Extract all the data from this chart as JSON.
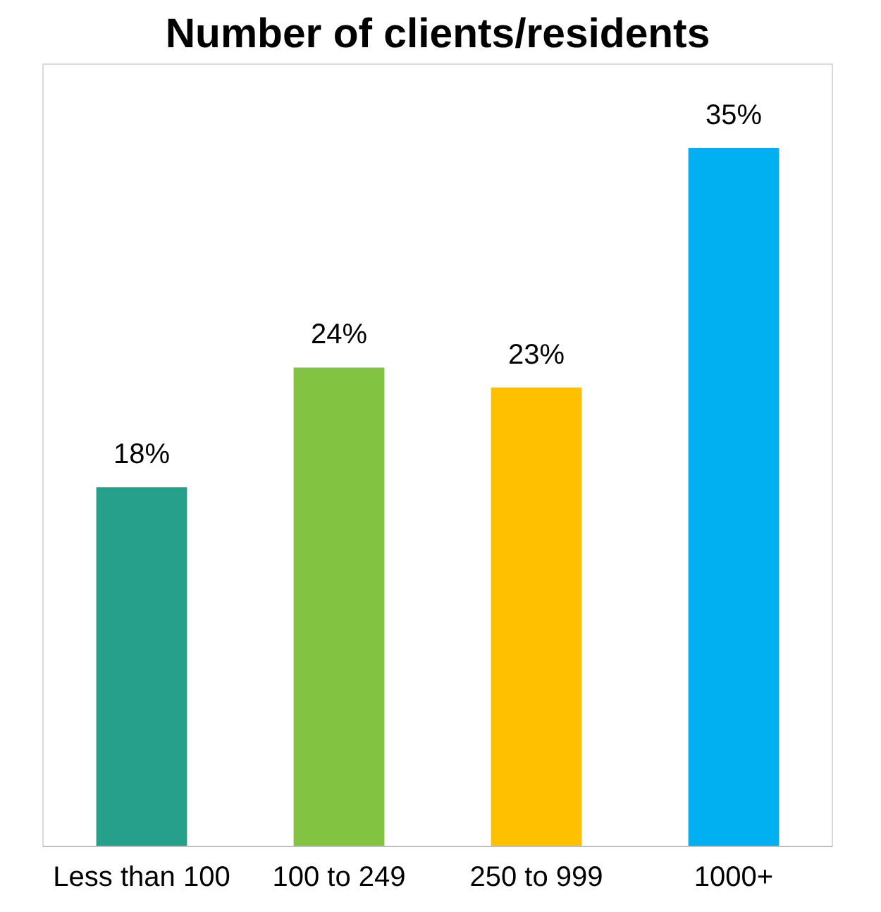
{
  "chart_data": {
    "type": "bar",
    "title": "Number of clients/residents",
    "categories": [
      "Less than 100",
      "100 to 249",
      "250 to 999",
      "1000+"
    ],
    "values": [
      18,
      24,
      23,
      35
    ],
    "colors": [
      "#26a08a",
      "#82c341",
      "#ffc000",
      "#00b0f0"
    ],
    "value_labels": [
      "18%",
      "24%",
      "23%",
      "35%"
    ],
    "grid": false
  }
}
